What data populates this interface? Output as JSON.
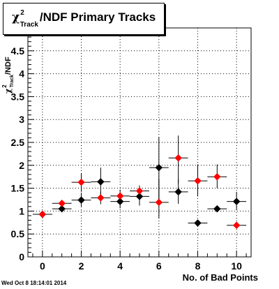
{
  "title": {
    "symbol": "χ",
    "superscript": "2",
    "subscript": "Track",
    "rest": "/NDF Primary Tracks"
  },
  "y_axis_label": {
    "symbol": "χ",
    "superscript": "2",
    "subscript": "Track",
    "rest": "/NDF"
  },
  "x_axis_label": "No. of Bad Points",
  "footer": "Wed Oct  8 18:14:01 2014",
  "colors": {
    "series_black": "#000000",
    "series_red": "#ff0000",
    "grid": "#000000"
  },
  "chart_data": {
    "type": "scatter",
    "title": "χ2 Track/NDF Primary Tracks",
    "xlabel": "No. of Bad Points",
    "ylabel": "χ2 Track/NDF",
    "xlim": [
      -0.75,
      10.75
    ],
    "ylim": [
      0,
      5
    ],
    "grid": true,
    "x_ticks": [
      0,
      2,
      4,
      6,
      8,
      10
    ],
    "y_ticks": [
      0,
      0.5,
      1,
      1.5,
      2,
      2.5,
      3,
      3.5,
      4,
      4.5
    ],
    "y_tick_labels": [
      "0",
      "0.5",
      "1",
      "1.5",
      "2",
      "2.5",
      "3",
      "3.5",
      "4",
      "4.5"
    ],
    "series": [
      {
        "color": "#000000",
        "points": [
          {
            "x": 0,
            "y": 0.93,
            "xerr": 0.5,
            "ylo": 0.88,
            "yhi": 0.98
          },
          {
            "x": 1,
            "y": 1.05,
            "xerr": 0.5,
            "ylo": 0.98,
            "yhi": 1.12
          },
          {
            "x": 2,
            "y": 1.24,
            "xerr": 0.5,
            "ylo": 1.1,
            "yhi": 1.4
          },
          {
            "x": 3,
            "y": 1.64,
            "xerr": 0.5,
            "ylo": 1.3,
            "yhi": 1.95
          },
          {
            "x": 4,
            "y": 1.21,
            "xerr": 0.5,
            "ylo": 1.06,
            "yhi": 1.37
          },
          {
            "x": 5,
            "y": 1.32,
            "xerr": 0.5,
            "ylo": 1.12,
            "yhi": 1.52
          },
          {
            "x": 6,
            "y": 1.95,
            "xerr": 0.5,
            "ylo": 1.22,
            "yhi": 2.62
          },
          {
            "x": 7,
            "y": 1.42,
            "xerr": 0.5,
            "ylo": 1.16,
            "yhi": 1.7
          },
          {
            "x": 8,
            "y": 0.74,
            "xerr": 0.5,
            "ylo": 0.72,
            "yhi": 0.76
          },
          {
            "x": 9,
            "y": 1.05,
            "xerr": 0.5,
            "ylo": 1.03,
            "yhi": 1.07
          },
          {
            "x": 10,
            "y": 1.21,
            "xerr": 0.5,
            "ylo": 1.02,
            "yhi": 1.42
          }
        ]
      },
      {
        "color": "#ff0000",
        "points": [
          {
            "x": 0,
            "y": 0.93,
            "xerr": 0.5,
            "ylo": 0.88,
            "yhi": 0.98
          },
          {
            "x": 1,
            "y": 1.17,
            "xerr": 0.5,
            "ylo": 1.1,
            "yhi": 1.24
          },
          {
            "x": 2,
            "y": 1.63,
            "xerr": 0.5,
            "ylo": 1.42,
            "yhi": 1.82
          },
          {
            "x": 3,
            "y": 1.29,
            "xerr": 0.5,
            "ylo": 1.15,
            "yhi": 1.42
          },
          {
            "x": 4,
            "y": 1.33,
            "xerr": 0.5,
            "ylo": 1.19,
            "yhi": 1.47
          },
          {
            "x": 5,
            "y": 1.44,
            "xerr": 0.5,
            "ylo": 1.32,
            "yhi": 1.56
          },
          {
            "x": 6,
            "y": 1.19,
            "xerr": 0.5,
            "ylo": 0.84,
            "yhi": 1.7
          },
          {
            "x": 7,
            "y": 2.16,
            "xerr": 0.5,
            "ylo": 1.6,
            "yhi": 2.65
          },
          {
            "x": 8,
            "y": 1.66,
            "xerr": 0.5,
            "ylo": 1.32,
            "yhi": 2.02
          },
          {
            "x": 9,
            "y": 1.75,
            "xerr": 0.5,
            "ylo": 1.5,
            "yhi": 2.02
          },
          {
            "x": 10,
            "y": 0.69,
            "xerr": 0.5,
            "ylo": 0.67,
            "yhi": 0.71
          }
        ]
      }
    ]
  }
}
